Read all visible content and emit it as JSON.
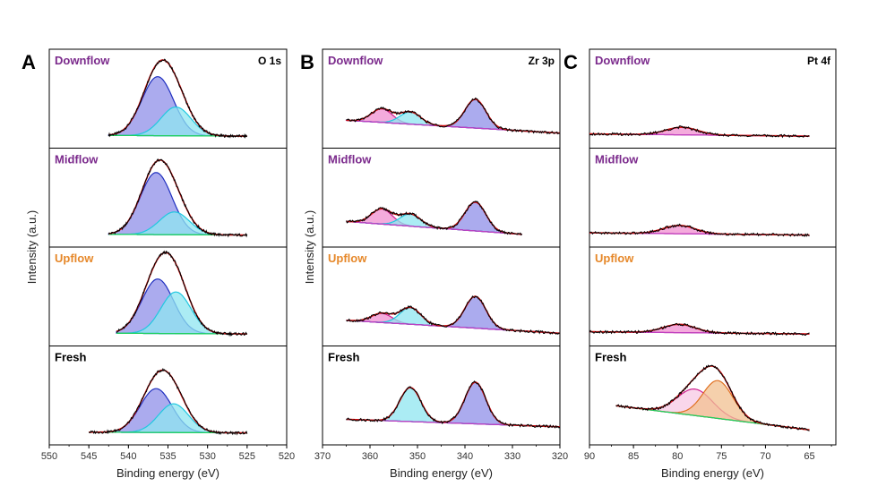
{
  "chart_data": [
    {
      "type": "line",
      "panel_letter": "A",
      "core_level": "O 1s",
      "xlabel": "Binding energy (eV)",
      "ylabel": "Intensity (a.u.)",
      "xlim": [
        550,
        520
      ],
      "x_ticks": [
        "550",
        "545",
        "540",
        "535",
        "530",
        "525",
        "520"
      ],
      "x_tick_values": [
        550,
        545,
        540,
        535,
        530,
        525,
        520
      ],
      "rows": [
        {
          "label": "Downflow",
          "color": "#7b2a8c",
          "x_range": [
            542.5,
            525
          ],
          "baseline": [
            0.05,
            0.04
          ],
          "peaks": [
            {
              "center": 536.3,
              "height": 0.78,
              "width": 2.0,
              "fill": "#8f8fe8",
              "line": "#1f2fbf"
            },
            {
              "center": 534.0,
              "height": 0.38,
              "width": 1.9,
              "fill": "#8fe6f0",
              "line": "#20c8e0"
            }
          ]
        },
        {
          "label": "Midflow",
          "color": "#7b2a8c",
          "x_range": [
            542.5,
            525
          ],
          "baseline": [
            0.05,
            0.04
          ],
          "peaks": [
            {
              "center": 536.5,
              "height": 0.82,
              "width": 2.0,
              "fill": "#8f8fe8",
              "line": "#1f2fbf"
            },
            {
              "center": 534.2,
              "height": 0.3,
              "width": 1.9,
              "fill": "#8fe6f0",
              "line": "#20c8e0"
            }
          ]
        },
        {
          "label": "Upflow",
          "color": "#e6882a",
          "x_range": [
            541.5,
            525
          ],
          "baseline": [
            0.05,
            0.04
          ],
          "peaks": [
            {
              "center": 536.3,
              "height": 0.72,
              "width": 2.0,
              "fill": "#8f8fe8",
              "line": "#1f2fbf"
            },
            {
              "center": 534.0,
              "height": 0.55,
              "width": 1.9,
              "fill": "#8fe6f0",
              "line": "#20c8e0"
            }
          ]
        },
        {
          "label": "Fresh",
          "color": "#000000",
          "x_range": [
            545,
            525
          ],
          "baseline": [
            0.05,
            0.04
          ],
          "peaks": [
            {
              "center": 536.5,
              "height": 0.58,
              "width": 2.0,
              "fill": "#8f8fe8",
              "line": "#1f2fbf"
            },
            {
              "center": 534.3,
              "height": 0.38,
              "width": 1.9,
              "fill": "#8fe6f0",
              "line": "#20c8e0"
            }
          ]
        }
      ]
    },
    {
      "type": "line",
      "panel_letter": "B",
      "core_level": "Zr 3p",
      "xlabel": "Binding energy (eV)",
      "ylabel": "Intensity (a.u.)",
      "xlim": [
        370,
        320
      ],
      "x_ticks": [
        "370",
        "360",
        "350",
        "340",
        "330",
        "320"
      ],
      "x_tick_values": [
        370,
        360,
        350,
        340,
        330,
        320
      ],
      "rows": [
        {
          "label": "Downflow",
          "color": "#7b2a8c",
          "x_range": [
            365,
            320
          ],
          "baseline": [
            0.25,
            0.08
          ],
          "peaks": [
            {
              "center": 357.5,
              "height": 0.18,
              "width": 2.2,
              "fill": "#f08fd0",
              "line": "#d02090"
            },
            {
              "center": 351.5,
              "height": 0.16,
              "width": 2.2,
              "fill": "#8fe6f0",
              "line": "#20c8e0"
            },
            {
              "center": 337.8,
              "height": 0.38,
              "width": 2.2,
              "fill": "#8f8fe8",
              "line": "#1f2fbf"
            }
          ]
        },
        {
          "label": "Midflow",
          "color": "#7b2a8c",
          "x_range": [
            365,
            328
          ],
          "baseline": [
            0.22,
            0.05
          ],
          "peaks": [
            {
              "center": 357.5,
              "height": 0.2,
              "width": 2.2,
              "fill": "#f08fd0",
              "line": "#d02090"
            },
            {
              "center": 351.5,
              "height": 0.16,
              "width": 2.2,
              "fill": "#8fe6f0",
              "line": "#20c8e0"
            },
            {
              "center": 337.8,
              "height": 0.38,
              "width": 2.2,
              "fill": "#8f8fe8",
              "line": "#1f2fbf"
            }
          ]
        },
        {
          "label": "Upflow",
          "color": "#e6882a",
          "x_range": [
            365,
            320
          ],
          "baseline": [
            0.22,
            0.05
          ],
          "peaks": [
            {
              "center": 357.5,
              "height": 0.12,
              "width": 2.2,
              "fill": "#f08fd0",
              "line": "#d02090"
            },
            {
              "center": 351.5,
              "height": 0.22,
              "width": 2.2,
              "fill": "#8fe6f0",
              "line": "#20c8e0"
            },
            {
              "center": 337.8,
              "height": 0.42,
              "width": 2.2,
              "fill": "#8f8fe8",
              "line": "#1f2fbf"
            }
          ]
        },
        {
          "label": "Fresh",
          "color": "#000000",
          "x_range": [
            365,
            320
          ],
          "baseline": [
            0.22,
            0.12
          ],
          "peaks": [
            {
              "center": 351.5,
              "height": 0.45,
              "width": 2.2,
              "fill": "#8fe6f0",
              "line": "#20c8e0"
            },
            {
              "center": 337.8,
              "height": 0.55,
              "width": 2.2,
              "fill": "#8f8fe8",
              "line": "#1f2fbf"
            }
          ]
        }
      ]
    },
    {
      "type": "line",
      "panel_letter": "C",
      "core_level": "Pt 4f",
      "xlabel": "Binding energy (eV)",
      "ylabel": "",
      "xlim": [
        90,
        62
      ],
      "x_ticks": [
        "90",
        "85",
        "80",
        "75",
        "70",
        "65"
      ],
      "x_tick_values": [
        90,
        85,
        80,
        75,
        70,
        65
      ],
      "rows": [
        {
          "label": "Downflow",
          "color": "#7b2a8c",
          "x_range": [
            90,
            65
          ],
          "baseline": [
            0.07,
            0.04
          ],
          "peaks": [
            {
              "center": 79.5,
              "height": 0.1,
              "width": 1.8,
              "fill": "#f08fd0",
              "line": "#d02090"
            }
          ]
        },
        {
          "label": "Midflow",
          "color": "#7b2a8c",
          "x_range": [
            90,
            65
          ],
          "baseline": [
            0.07,
            0.04
          ],
          "peaks": [
            {
              "center": 79.8,
              "height": 0.11,
              "width": 1.8,
              "fill": "#f08fd0",
              "line": "#d02090"
            }
          ]
        },
        {
          "label": "Upflow",
          "color": "#e6882a",
          "x_range": [
            90,
            65
          ],
          "baseline": [
            0.07,
            0.04
          ],
          "peaks": [
            {
              "center": 79.8,
              "height": 0.11,
              "width": 1.8,
              "fill": "#f08fd0",
              "line": "#d02090"
            }
          ]
        },
        {
          "label": "Fresh",
          "color": "#000000",
          "x_range": [
            87,
            65
          ],
          "baseline": [
            0.4,
            0.08
          ],
          "peaks": [
            {
              "center": 78.0,
              "height": 0.35,
              "width": 2.0,
              "fill": "#f7c8e4",
              "line": "#d02090"
            },
            {
              "center": 75.4,
              "height": 0.5,
              "width": 1.7,
              "fill": "#f2c090",
              "line": "#e07020"
            }
          ]
        }
      ]
    }
  ]
}
